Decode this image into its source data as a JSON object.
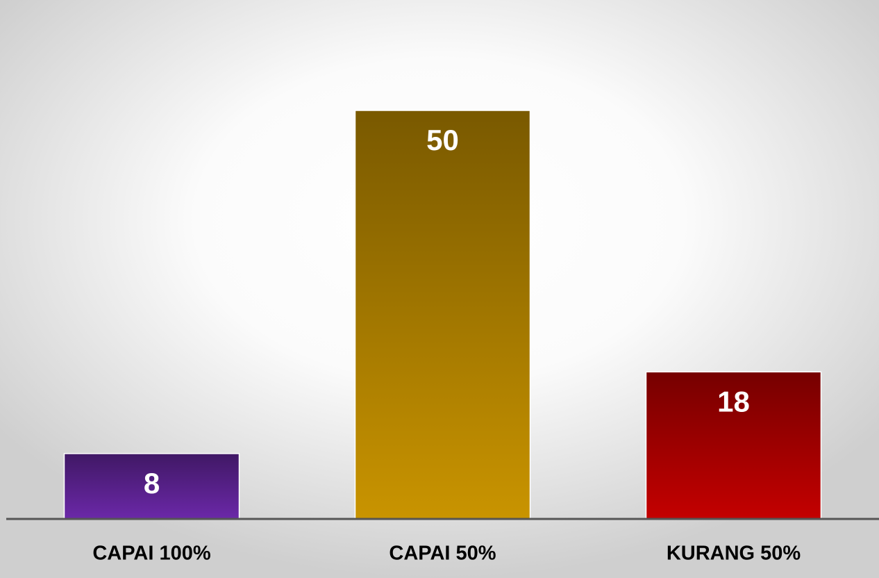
{
  "chart_data": {
    "type": "bar",
    "categories": [
      "CAPAI 100%",
      "CAPAI 50%",
      "KURANG 50%"
    ],
    "values": [
      8,
      50,
      18
    ],
    "colors": [
      "#6b28a8",
      "#c99400",
      "#c40000"
    ],
    "ylim": [
      0,
      50
    ]
  }
}
